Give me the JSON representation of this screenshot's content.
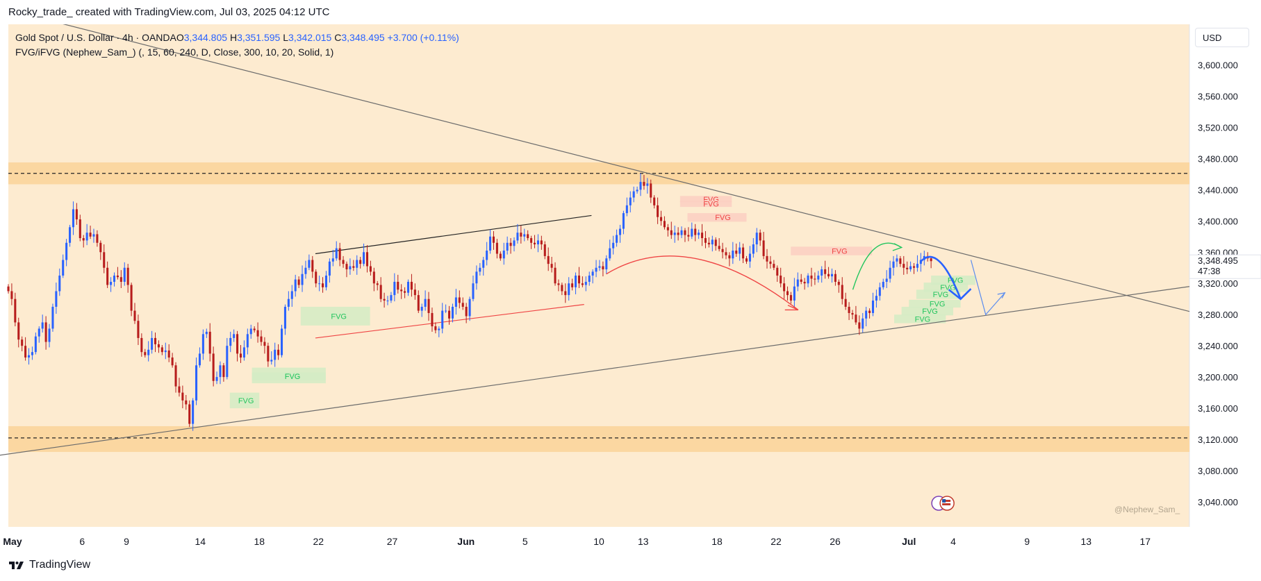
{
  "header": {
    "attribution": "Rocky_trade_ created with TradingView.com, Jul 03, 2025 04:12 UTC"
  },
  "legend": {
    "symbol": "Gold Spot / U.S. Dollar · 4h · OANDA",
    "open_label": "O",
    "open": "3,344.805",
    "high_label": "H",
    "high": "3,351.595",
    "low_label": "L",
    "low": "3,342.015",
    "close_label": "C",
    "close": "3,348.495",
    "change": "+3.700 (+0.11%)",
    "indicator": "FVG/iFVG (Nephew_Sam_) (, 15, 60, 240, D, Close, 300, 10, 20, Solid, 1)"
  },
  "currency_button": "USD",
  "price_label": {
    "price": "3,348.495",
    "countdown": "47:38"
  },
  "watermark": "@Nephew_Sam_",
  "footer": {
    "brand": "TradingView"
  },
  "colors": {
    "background": "#fdebd0",
    "zone": "#fbd7a1",
    "bull": "#2962ff",
    "bear": "#b71c1c",
    "fvg_bull_box": "#d4ecc4",
    "fvg_bull_text": "#22c55e",
    "fvg_bear_box": "#fbcfc2",
    "fvg_bear_text": "#ef4444",
    "trend_line": "#6b6b6b"
  },
  "chart_data": {
    "type": "candlestick",
    "symbol": "XAUUSD",
    "timeframe": "4h",
    "y_ticks": [
      "3,600.000",
      "3,560.000",
      "3,520.000",
      "3,480.000",
      "3,440.000",
      "3,400.000",
      "3,360.000",
      "3,320.000",
      "3,280.000",
      "3,240.000",
      "3,200.000",
      "3,160.000",
      "3,120.000",
      "3,080.000",
      "3,040.000"
    ],
    "y_tick_values": [
      3600,
      3560,
      3520,
      3480,
      3440,
      3400,
      3360,
      3320,
      3280,
      3240,
      3200,
      3160,
      3120,
      3080,
      3040
    ],
    "ylim": [
      3008,
      3652
    ],
    "x_ticks": [
      {
        "label": "May",
        "day": 0,
        "bold": true
      },
      {
        "label": "6",
        "day": 5
      },
      {
        "label": "9",
        "day": 8
      },
      {
        "label": "14",
        "day": 13
      },
      {
        "label": "18",
        "day": 17
      },
      {
        "label": "22",
        "day": 21
      },
      {
        "label": "27",
        "day": 26
      },
      {
        "label": "Jun",
        "day": 31,
        "bold": true
      },
      {
        "label": "5",
        "day": 35
      },
      {
        "label": "10",
        "day": 40
      },
      {
        "label": "13",
        "day": 43
      },
      {
        "label": "18",
        "day": 48
      },
      {
        "label": "22",
        "day": 52
      },
      {
        "label": "26",
        "day": 56
      },
      {
        "label": "Jul",
        "day": 61,
        "bold": true
      },
      {
        "label": "4",
        "day": 64
      },
      {
        "label": "9",
        "day": 69
      },
      {
        "label": "13",
        "day": 73
      },
      {
        "label": "17",
        "day": 77
      }
    ],
    "xlim_days": [
      0,
      80
    ],
    "closes": [
      3310,
      3300,
      3270,
      3248,
      3240,
      3225,
      3228,
      3232,
      3252,
      3262,
      3270,
      3245,
      3262,
      3290,
      3310,
      3330,
      3350,
      3372,
      3392,
      3415,
      3402,
      3378,
      3375,
      3385,
      3380,
      3383,
      3372,
      3360,
      3340,
      3318,
      3322,
      3330,
      3328,
      3322,
      3340,
      3318,
      3285,
      3272,
      3250,
      3232,
      3228,
      3235,
      3250,
      3242,
      3238,
      3232,
      3234,
      3225,
      3215,
      3188,
      3180,
      3170,
      3165,
      3140,
      3170,
      3215,
      3230,
      3255,
      3258,
      3230,
      3195,
      3200,
      3215,
      3200,
      3240,
      3250,
      3255,
      3230,
      3225,
      3238,
      3255,
      3262,
      3260,
      3252,
      3245,
      3240,
      3220,
      3222,
      3235,
      3228,
      3262,
      3290,
      3300,
      3310,
      3325,
      3318,
      3332,
      3340,
      3350,
      3335,
      3320,
      3320,
      3315,
      3330,
      3348,
      3352,
      3365,
      3350,
      3345,
      3338,
      3342,
      3340,
      3350,
      3345,
      3360,
      3342,
      3335,
      3320,
      3318,
      3300,
      3298,
      3298,
      3305,
      3322,
      3312,
      3310,
      3308,
      3322,
      3312,
      3305,
      3285,
      3290,
      3300,
      3282,
      3265,
      3260,
      3262,
      3285,
      3285,
      3275,
      3290,
      3302,
      3295,
      3290,
      3278,
      3300,
      3320,
      3335,
      3340,
      3350,
      3362,
      3380,
      3372,
      3358,
      3352,
      3362,
      3372,
      3368,
      3375,
      3385,
      3380,
      3383,
      3378,
      3372,
      3370,
      3375,
      3370,
      3355,
      3345,
      3340,
      3320,
      3318,
      3310,
      3305,
      3320,
      3315,
      3330,
      3320,
      3318,
      3322,
      3330,
      3335,
      3340,
      3342,
      3338,
      3352,
      3365,
      3372,
      3382,
      3390,
      3410,
      3420,
      3430,
      3438,
      3440,
      3450,
      3445,
      3448,
      3430,
      3420,
      3405,
      3400,
      3392,
      3388,
      3382,
      3385,
      3382,
      3388,
      3382,
      3380,
      3390,
      3382,
      3385,
      3378,
      3372,
      3370,
      3376,
      3368,
      3364,
      3360,
      3356,
      3352,
      3362,
      3358,
      3366,
      3352,
      3348,
      3358,
      3370,
      3385,
      3375,
      3355,
      3348,
      3345,
      3340,
      3330,
      3320,
      3310,
      3305,
      3298,
      3316,
      3325,
      3322,
      3320,
      3330,
      3326,
      3325,
      3330,
      3338,
      3332,
      3329,
      3332,
      3322,
      3318,
      3300,
      3290,
      3282,
      3280,
      3270,
      3262,
      3275,
      3285,
      3282,
      3298,
      3304,
      3315,
      3322,
      3326,
      3340,
      3348,
      3352,
      3345,
      3340,
      3338,
      3342,
      3340,
      3345,
      3350,
      3355,
      3352,
      3348.495
    ],
    "trend_lines": [
      {
        "name": "upper-descending",
        "from": {
          "day": -2,
          "price": 3680
        },
        "to": {
          "day": 80,
          "price": 3284
        }
      },
      {
        "name": "lower-ascending",
        "from": {
          "day": -2,
          "price": 3096
        },
        "to": {
          "day": 80,
          "price": 3316
        }
      }
    ],
    "horizontal_levels": [
      3461,
      3122
    ],
    "zones": [
      {
        "name": "resistance",
        "top": 3475,
        "bottom": 3447
      },
      {
        "name": "support",
        "top": 3137,
        "bottom": 3104
      }
    ],
    "fvg_label": "FVG",
    "fvg_bull": [
      {
        "d1": 19.8,
        "d2": 24.5,
        "p1": 3290,
        "p2": 3266,
        "text": "FVG"
      },
      {
        "d1": 16.5,
        "d2": 21.5,
        "p1": 3212,
        "p2": 3192,
        "text": "FVG"
      },
      {
        "d1": 16.5,
        "d2": 21.5,
        "p1": 3206,
        "p2": 3196,
        "text": "FVG"
      },
      {
        "d1": 15,
        "d2": 17,
        "p1": 3180,
        "p2": 3160,
        "text": "FVG"
      },
      {
        "d1": 62.5,
        "d2": 65.5,
        "p1": 3330,
        "p2": 3318,
        "text": "FVG"
      },
      {
        "d1": 62,
        "d2": 65,
        "p1": 3321,
        "p2": 3309,
        "text": "FVG"
      },
      {
        "d1": 61.5,
        "d2": 64.5,
        "p1": 3312,
        "p2": 3300,
        "text": "FVG"
      },
      {
        "d1": 61,
        "d2": 64.5,
        "p1": 3299,
        "p2": 3289,
        "text": "FVG"
      },
      {
        "d1": 60.5,
        "d2": 64,
        "p1": 3290,
        "p2": 3279,
        "text": "FVG"
      },
      {
        "d1": 60,
        "d2": 63.5,
        "p1": 3280,
        "p2": 3269,
        "text": "FVG"
      }
    ],
    "fvg_bear": [
      {
        "d1": 45.5,
        "d2": 49,
        "p1": 3432,
        "p2": 3424,
        "text": "FVG"
      },
      {
        "d1": 45.5,
        "d2": 49,
        "p1": 3426,
        "p2": 3418,
        "text": "FVG"
      },
      {
        "d1": 46,
        "d2": 50,
        "p1": 3410,
        "p2": 3399,
        "text": "FVG"
      },
      {
        "d1": 53,
        "d2": 58.5,
        "p1": 3367,
        "p2": 3356,
        "text": "FVG"
      }
    ],
    "drawings": [
      {
        "name": "black-channel-line",
        "from": {
          "day": 20.8,
          "price": 3358
        },
        "to": {
          "day": 39.5,
          "price": 3407
        }
      },
      {
        "name": "red-channel-line",
        "from": {
          "day": 20.8,
          "price": 3250
        },
        "to": {
          "day": 39,
          "price": 3293
        }
      }
    ]
  }
}
